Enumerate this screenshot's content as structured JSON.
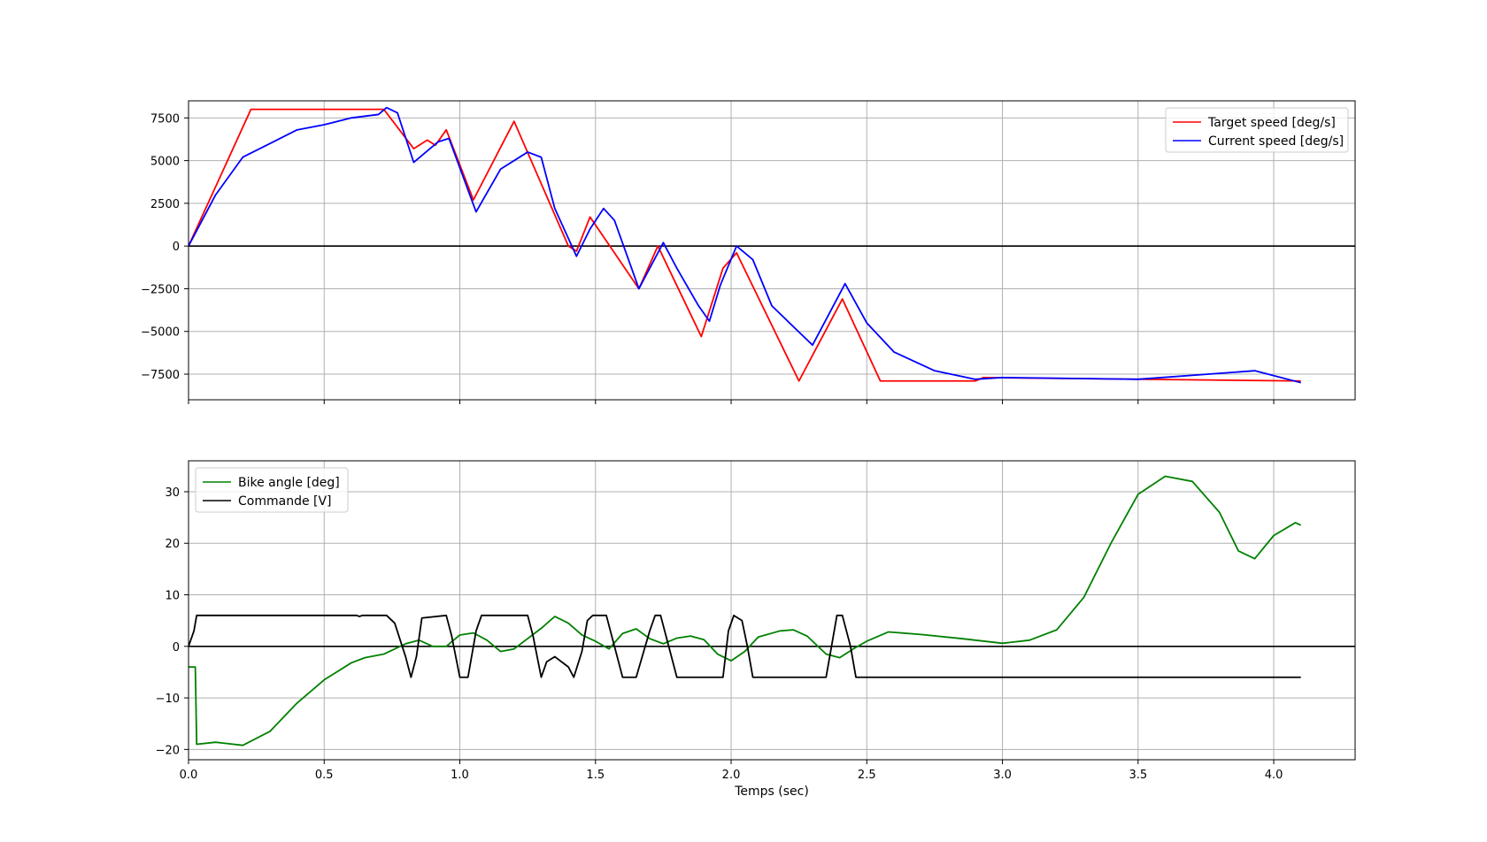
{
  "chart_data": [
    {
      "type": "line",
      "title": "",
      "xlabel": "",
      "ylabel": "",
      "xlim": [
        0.0,
        4.3
      ],
      "ylim": [
        -9000,
        8500
      ],
      "xticks": [
        0.0,
        0.5,
        1.0,
        1.5,
        2.0,
        2.5,
        3.0,
        3.5,
        4.0
      ],
      "yticks": [
        -7500,
        -5000,
        -2500,
        0,
        2500,
        5000,
        7500
      ],
      "ytick_labels": [
        "−7500",
        "−5000",
        "−2500",
        "0",
        "2500",
        "5000",
        "7500"
      ],
      "grid": true,
      "legend_position": "top-right",
      "reference_line": 0,
      "series": [
        {
          "name": "Target speed [deg/s]",
          "color": "#ff0000",
          "points": [
            [
              0.0,
              0
            ],
            [
              0.23,
              8000
            ],
            [
              0.72,
              8000
            ],
            [
              0.83,
              5700
            ],
            [
              0.88,
              6200
            ],
            [
              0.91,
              5900
            ],
            [
              0.95,
              6800
            ],
            [
              1.05,
              2700
            ],
            [
              1.2,
              7300
            ],
            [
              1.4,
              0
            ],
            [
              1.43,
              -300
            ],
            [
              1.48,
              1700
            ],
            [
              1.66,
              -2500
            ],
            [
              1.73,
              0
            ],
            [
              1.89,
              -5300
            ],
            [
              1.97,
              -1300
            ],
            [
              2.02,
              -400
            ],
            [
              2.25,
              -7900
            ],
            [
              2.41,
              -3100
            ],
            [
              2.55,
              -7900
            ],
            [
              2.9,
              -7900
            ],
            [
              2.93,
              -7700
            ],
            [
              4.1,
              -7900
            ]
          ]
        },
        {
          "name": "Current speed [deg/s]",
          "color": "#0000ff",
          "points": [
            [
              0.0,
              0
            ],
            [
              0.05,
              1500
            ],
            [
              0.1,
              3000
            ],
            [
              0.2,
              5200
            ],
            [
              0.3,
              6000
            ],
            [
              0.4,
              6800
            ],
            [
              0.5,
              7100
            ],
            [
              0.6,
              7500
            ],
            [
              0.7,
              7700
            ],
            [
              0.73,
              8100
            ],
            [
              0.77,
              7800
            ],
            [
              0.83,
              4900
            ],
            [
              0.92,
              6100
            ],
            [
              0.96,
              6300
            ],
            [
              1.06,
              2000
            ],
            [
              1.15,
              4500
            ],
            [
              1.25,
              5500
            ],
            [
              1.3,
              5200
            ],
            [
              1.35,
              2200
            ],
            [
              1.43,
              -600
            ],
            [
              1.48,
              1000
            ],
            [
              1.53,
              2200
            ],
            [
              1.57,
              1500
            ],
            [
              1.66,
              -2500
            ],
            [
              1.75,
              200
            ],
            [
              1.8,
              -1300
            ],
            [
              1.88,
              -3500
            ],
            [
              1.92,
              -4400
            ],
            [
              1.96,
              -2300
            ],
            [
              2.02,
              0
            ],
            [
              2.08,
              -800
            ],
            [
              2.15,
              -3500
            ],
            [
              2.3,
              -5800
            ],
            [
              2.36,
              -4000
            ],
            [
              2.42,
              -2200
            ],
            [
              2.5,
              -4500
            ],
            [
              2.6,
              -6200
            ],
            [
              2.75,
              -7300
            ],
            [
              2.9,
              -7800
            ],
            [
              3.0,
              -7700
            ],
            [
              3.5,
              -7800
            ],
            [
              3.93,
              -7300
            ],
            [
              4.1,
              -8000
            ]
          ]
        }
      ]
    },
    {
      "type": "line",
      "title": "",
      "xlabel": "Temps (sec)",
      "ylabel": "",
      "xlim": [
        0.0,
        4.3
      ],
      "ylim": [
        -22,
        36
      ],
      "xticks": [
        0.0,
        0.5,
        1.0,
        1.5,
        2.0,
        2.5,
        3.0,
        3.5,
        4.0
      ],
      "xtick_labels": [
        "0.0",
        "0.5",
        "1.0",
        "1.5",
        "2.0",
        "2.5",
        "3.0",
        "3.5",
        "4.0"
      ],
      "yticks": [
        -20,
        -10,
        0,
        10,
        20,
        30
      ],
      "ytick_labels": [
        "−20",
        "−10",
        "0",
        "10",
        "20",
        "30"
      ],
      "grid": true,
      "legend_position": "top-left",
      "reference_line": 0,
      "series": [
        {
          "name": "Bike angle [deg]",
          "color": "#008000",
          "points": [
            [
              0.0,
              -4
            ],
            [
              0.025,
              -4
            ],
            [
              0.03,
              -19
            ],
            [
              0.1,
              -18.6
            ],
            [
              0.2,
              -19.2
            ],
            [
              0.3,
              -16.5
            ],
            [
              0.4,
              -11
            ],
            [
              0.5,
              -6.5
            ],
            [
              0.6,
              -3.2
            ],
            [
              0.65,
              -2.2
            ],
            [
              0.72,
              -1.5
            ],
            [
              0.8,
              0.5
            ],
            [
              0.85,
              1.2
            ],
            [
              0.9,
              0
            ],
            [
              0.95,
              0
            ],
            [
              1.0,
              2.2
            ],
            [
              1.05,
              2.6
            ],
            [
              1.1,
              1.2
            ],
            [
              1.15,
              -1
            ],
            [
              1.2,
              -0.5
            ],
            [
              1.3,
              3.5
            ],
            [
              1.35,
              5.8
            ],
            [
              1.4,
              4.5
            ],
            [
              1.45,
              2.2
            ],
            [
              1.5,
              1
            ],
            [
              1.55,
              -0.5
            ],
            [
              1.6,
              2.5
            ],
            [
              1.65,
              3.4
            ],
            [
              1.7,
              1.5
            ],
            [
              1.75,
              0.5
            ],
            [
              1.8,
              1.6
            ],
            [
              1.85,
              2
            ],
            [
              1.9,
              1.3
            ],
            [
              1.95,
              -1.5
            ],
            [
              2.0,
              -2.8
            ],
            [
              2.05,
              -1
            ],
            [
              2.1,
              1.8
            ],
            [
              2.18,
              3
            ],
            [
              2.23,
              3.2
            ],
            [
              2.28,
              2
            ],
            [
              2.35,
              -1.5
            ],
            [
              2.4,
              -2.2
            ],
            [
              2.45,
              -0.5
            ],
            [
              2.5,
              1
            ],
            [
              2.58,
              2.8
            ],
            [
              2.7,
              2.3
            ],
            [
              2.85,
              1.5
            ],
            [
              2.95,
              0.9
            ],
            [
              3.0,
              0.6
            ],
            [
              3.1,
              1.2
            ],
            [
              3.2,
              3.2
            ],
            [
              3.3,
              9.5
            ],
            [
              3.4,
              20
            ],
            [
              3.5,
              29.5
            ],
            [
              3.6,
              33
            ],
            [
              3.7,
              32
            ],
            [
              3.8,
              26
            ],
            [
              3.87,
              18.5
            ],
            [
              3.93,
              17
            ],
            [
              4.0,
              21.5
            ],
            [
              4.08,
              24
            ],
            [
              4.1,
              23.5
            ]
          ]
        },
        {
          "name": "Commande [V]",
          "color": "#000000",
          "points": [
            [
              0.0,
              0
            ],
            [
              0.02,
              3
            ],
            [
              0.03,
              6
            ],
            [
              0.62,
              6
            ],
            [
              0.63,
              5.8
            ],
            [
              0.64,
              6
            ],
            [
              0.73,
              6
            ],
            [
              0.76,
              4.5
            ],
            [
              0.8,
              -2
            ],
            [
              0.82,
              -6
            ],
            [
              0.84,
              -2
            ],
            [
              0.86,
              5.5
            ],
            [
              0.95,
              6
            ],
            [
              0.97,
              2
            ],
            [
              1.0,
              -6
            ],
            [
              1.03,
              -6
            ],
            [
              1.06,
              3
            ],
            [
              1.08,
              6
            ],
            [
              1.25,
              6
            ],
            [
              1.27,
              2
            ],
            [
              1.3,
              -6
            ],
            [
              1.32,
              -3
            ],
            [
              1.35,
              -2
            ],
            [
              1.4,
              -4
            ],
            [
              1.42,
              -6
            ],
            [
              1.45,
              -1
            ],
            [
              1.47,
              5
            ],
            [
              1.49,
              6
            ],
            [
              1.54,
              6
            ],
            [
              1.56,
              2
            ],
            [
              1.6,
              -6
            ],
            [
              1.65,
              -6
            ],
            [
              1.7,
              3
            ],
            [
              1.72,
              6
            ],
            [
              1.74,
              6
            ],
            [
              1.77,
              0
            ],
            [
              1.8,
              -6
            ],
            [
              1.97,
              -6
            ],
            [
              1.99,
              3
            ],
            [
              2.01,
              6
            ],
            [
              2.04,
              5
            ],
            [
              2.06,
              0
            ],
            [
              2.08,
              -6
            ],
            [
              2.35,
              -6
            ],
            [
              2.37,
              0
            ],
            [
              2.39,
              6
            ],
            [
              2.41,
              6
            ],
            [
              2.44,
              0
            ],
            [
              2.46,
              -6
            ],
            [
              4.1,
              -6
            ]
          ]
        }
      ]
    }
  ]
}
